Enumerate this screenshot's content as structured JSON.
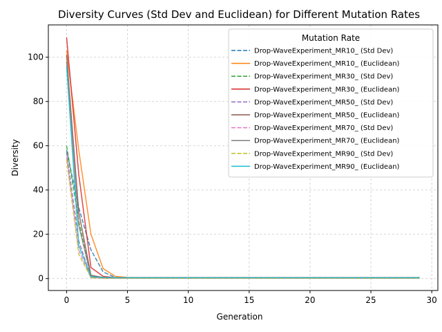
{
  "chart_data": {
    "type": "line",
    "title": "Diversity Curves (Std Dev and Euclidean) for Different Mutation Rates",
    "xlabel": "Generation",
    "ylabel": "Diversity",
    "xlim": [
      -1.5,
      30.5
    ],
    "ylim": [
      -5.4,
      114.6
    ],
    "xticks": [
      0,
      5,
      10,
      15,
      20,
      25,
      30
    ],
    "yticks": [
      0,
      20,
      40,
      60,
      80,
      100
    ],
    "grid": true,
    "legend": {
      "title": "Mutation Rate",
      "placement": "top-right"
    },
    "x": [
      0,
      1,
      2,
      3,
      4,
      5,
      6,
      7,
      8,
      9,
      10,
      11,
      12,
      13,
      14,
      15,
      16,
      17,
      18,
      19,
      20,
      21,
      22,
      23,
      24,
      25,
      26,
      27,
      28,
      29
    ],
    "series": [
      {
        "name": "Drop-WaveExperiment_MR10_ (Std Dev)",
        "color": "#1f77b4",
        "dash": "dashed",
        "values": [
          58,
          32,
          13,
          3,
          0.5,
          0.2,
          0.15,
          0.15,
          0.15,
          0.15,
          0.15,
          0.15,
          0.15,
          0.15,
          0.15,
          0.15,
          0.15,
          0.15,
          0.15,
          0.15,
          0.15,
          0.15,
          0.15,
          0.15,
          0.15,
          0.15,
          0.15,
          0.15,
          0.15,
          0.15
        ]
      },
      {
        "name": "Drop-WaveExperiment_MR10_ (Euclidean)",
        "color": "#ff7f0e",
        "dash": "solid",
        "values": [
          103,
          58,
          20,
          4.5,
          1,
          0.5,
          0.4,
          0.4,
          0.4,
          0.4,
          0.4,
          0.4,
          0.4,
          0.4,
          0.4,
          0.4,
          0.4,
          0.4,
          0.4,
          0.4,
          0.4,
          0.4,
          0.4,
          0.4,
          0.4,
          0.4,
          0.4,
          0.4,
          0.4,
          0.4
        ]
      },
      {
        "name": "Drop-WaveExperiment_MR30_ (Std Dev)",
        "color": "#2ca02c",
        "dash": "dashed",
        "values": [
          60,
          26,
          1,
          0.2,
          0.15,
          0.15,
          0.15,
          0.15,
          0.15,
          0.15,
          0.15,
          0.15,
          0.15,
          0.15,
          0.15,
          0.15,
          0.15,
          0.15,
          0.15,
          0.15,
          0.15,
          0.15,
          0.15,
          0.15,
          0.15,
          0.15,
          0.15,
          0.15,
          0.15,
          0.15
        ]
      },
      {
        "name": "Drop-WaveExperiment_MR30_ (Euclidean)",
        "color": "#d62728",
        "dash": "solid",
        "values": [
          109,
          47,
          5,
          1,
          0.4,
          0.4,
          0.4,
          0.4,
          0.4,
          0.4,
          0.4,
          0.4,
          0.4,
          0.4,
          0.4,
          0.4,
          0.4,
          0.4,
          0.4,
          0.4,
          0.4,
          0.4,
          0.4,
          0.4,
          0.4,
          0.4,
          0.4,
          0.4,
          0.4,
          0.4
        ]
      },
      {
        "name": "Drop-WaveExperiment_MR50_ (Std Dev)",
        "color": "#9467bd",
        "dash": "dashed",
        "values": [
          57,
          17,
          0.5,
          0.2,
          0.15,
          0.15,
          0.15,
          0.15,
          0.15,
          0.15,
          0.15,
          0.15,
          0.15,
          0.15,
          0.15,
          0.15,
          0.15,
          0.15,
          0.15,
          0.15,
          0.15,
          0.15,
          0.15,
          0.15,
          0.15,
          0.15,
          0.15,
          0.15,
          0.15,
          0.15
        ]
      },
      {
        "name": "Drop-WaveExperiment_MR50_ (Euclidean)",
        "color": "#8c564b",
        "dash": "solid",
        "values": [
          101,
          30,
          1.5,
          0.5,
          0.4,
          0.4,
          0.4,
          0.4,
          0.4,
          0.4,
          0.4,
          0.4,
          0.4,
          0.4,
          0.4,
          0.4,
          0.4,
          0.4,
          0.4,
          0.4,
          0.4,
          0.4,
          0.4,
          0.4,
          0.4,
          0.4,
          0.4,
          0.4,
          0.4,
          0.4
        ]
      },
      {
        "name": "Drop-WaveExperiment_MR70_ (Std Dev)",
        "color": "#e377c2",
        "dash": "dashed",
        "values": [
          55,
          13,
          0.4,
          0.2,
          0.15,
          0.15,
          0.15,
          0.15,
          0.15,
          0.15,
          0.15,
          0.15,
          0.15,
          0.15,
          0.15,
          0.15,
          0.15,
          0.15,
          0.15,
          0.15,
          0.15,
          0.15,
          0.15,
          0.15,
          0.15,
          0.15,
          0.15,
          0.15,
          0.15,
          0.15
        ]
      },
      {
        "name": "Drop-WaveExperiment_MR70_ (Euclidean)",
        "color": "#7f7f7f",
        "dash": "solid",
        "values": [
          98,
          24,
          1,
          0.5,
          0.4,
          0.4,
          0.4,
          0.4,
          0.4,
          0.4,
          0.4,
          0.4,
          0.4,
          0.4,
          0.4,
          0.4,
          0.4,
          0.4,
          0.4,
          0.4,
          0.4,
          0.4,
          0.4,
          0.4,
          0.4,
          0.4,
          0.4,
          0.4,
          0.4,
          0.4
        ]
      },
      {
        "name": "Drop-WaveExperiment_MR90_ (Std Dev)",
        "color": "#bcbd22",
        "dash": "dashed",
        "values": [
          54,
          11,
          0.4,
          0.2,
          0.15,
          0.15,
          0.15,
          0.15,
          0.15,
          0.15,
          0.15,
          0.15,
          0.15,
          0.15,
          0.15,
          0.15,
          0.15,
          0.15,
          0.15,
          0.15,
          0.15,
          0.15,
          0.15,
          0.15,
          0.15,
          0.15,
          0.15,
          0.15,
          0.15,
          0.15
        ]
      },
      {
        "name": "Drop-WaveExperiment_MR90_ (Euclidean)",
        "color": "#17becf",
        "dash": "solid",
        "values": [
          96,
          15,
          0.8,
          0.5,
          0.4,
          0.4,
          0.4,
          0.4,
          0.4,
          0.4,
          0.4,
          0.4,
          0.4,
          0.4,
          0.4,
          0.4,
          0.4,
          0.4,
          0.4,
          0.4,
          0.4,
          0.4,
          0.4,
          0.4,
          0.4,
          0.4,
          0.4,
          0.4,
          0.4,
          0.4
        ]
      }
    ]
  }
}
